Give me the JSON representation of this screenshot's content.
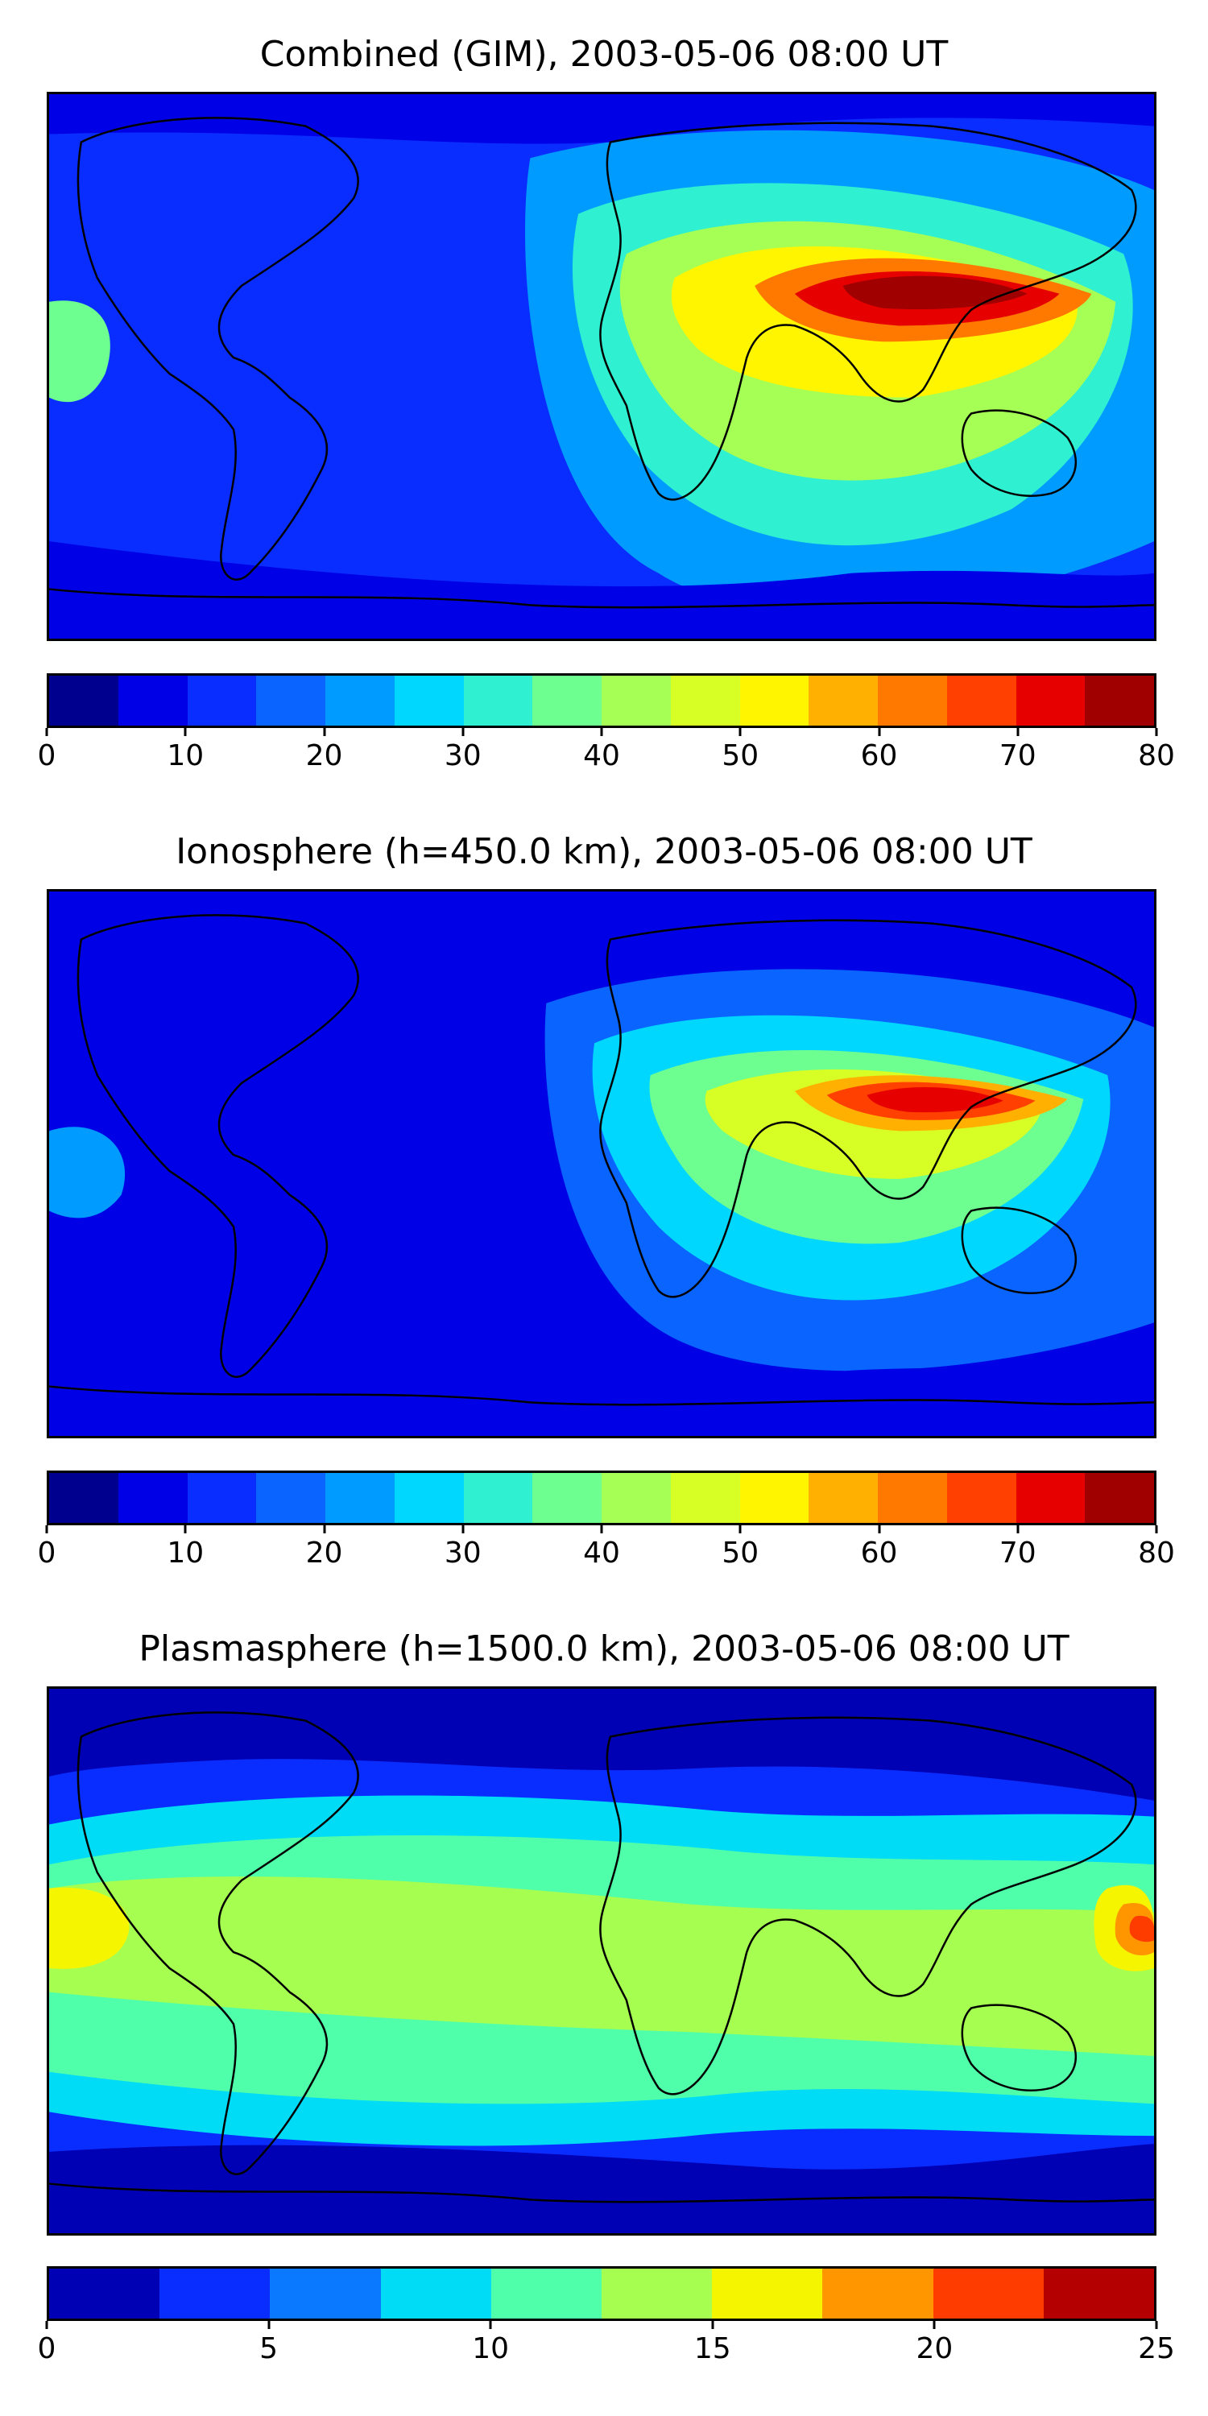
{
  "chart_data": [
    {
      "type": "heatmap",
      "title": "Combined (GIM), 2003-05-06 08:00 UT",
      "colorbar": {
        "levels": [
          0,
          5,
          10,
          15,
          20,
          25,
          30,
          35,
          40,
          45,
          50,
          55,
          60,
          65,
          70,
          75,
          80
        ],
        "tick_labels": [
          "0",
          "10",
          "20",
          "30",
          "40",
          "50",
          "60",
          "70",
          "80"
        ],
        "tick_values": [
          0,
          10,
          20,
          30,
          40,
          50,
          60,
          70,
          80
        ],
        "range": [
          0,
          80
        ],
        "colors": [
          "#00008f",
          "#0000e6",
          "#0a2dff",
          "#0a64ff",
          "#009bff",
          "#00d7ff",
          "#2ff0d0",
          "#6dff90",
          "#a6ff55",
          "#d7ff25",
          "#fff500",
          "#ffb000",
          "#ff7800",
          "#ff4000",
          "#e60000",
          "#a00000"
        ]
      },
      "background_level": 10,
      "regions": [
        {
          "name": "enhancement-outer",
          "level": 20
        },
        {
          "name": "enhancement-mid",
          "level": 30
        },
        {
          "name": "enhancement-inner",
          "level": 40
        },
        {
          "name": "crest-band",
          "level": 50
        },
        {
          "name": "crest-north-1",
          "level": 60
        },
        {
          "name": "crest-north-2",
          "level": 70
        },
        {
          "name": "crest-north-core",
          "level": 75
        },
        {
          "name": "pacific-west-edge",
          "level": 35
        },
        {
          "name": "polar-north",
          "level": 5
        },
        {
          "name": "polar-south",
          "level": 5
        }
      ]
    },
    {
      "type": "heatmap",
      "title": "Ionosphere  (h=450.0 km), 2003-05-06 08:00 UT",
      "colorbar": {
        "levels": [
          0,
          5,
          10,
          15,
          20,
          25,
          30,
          35,
          40,
          45,
          50,
          55,
          60,
          65,
          70,
          75,
          80
        ],
        "tick_labels": [
          "0",
          "10",
          "20",
          "30",
          "40",
          "50",
          "60",
          "70",
          "80"
        ],
        "tick_values": [
          0,
          10,
          20,
          30,
          40,
          50,
          60,
          70,
          80
        ],
        "range": [
          0,
          80
        ],
        "colors": [
          "#00008f",
          "#0000e6",
          "#0a2dff",
          "#0a64ff",
          "#009bff",
          "#00d7ff",
          "#2ff0d0",
          "#6dff90",
          "#a6ff55",
          "#d7ff25",
          "#fff500",
          "#ffb000",
          "#ff7800",
          "#ff4000",
          "#e60000",
          "#a00000"
        ]
      },
      "background_level": 5,
      "regions": [
        {
          "name": "enhancement-outer",
          "level": 15
        },
        {
          "name": "enhancement-mid",
          "level": 25
        },
        {
          "name": "enhancement-inner",
          "level": 35
        },
        {
          "name": "crest-band",
          "level": 45
        },
        {
          "name": "crest-north-1",
          "level": 55
        },
        {
          "name": "crest-north-2",
          "level": 65
        },
        {
          "name": "crest-north-core",
          "level": 70
        },
        {
          "name": "pacific-west-edge",
          "level": 20
        },
        {
          "name": "polar-north",
          "level": 5
        },
        {
          "name": "polar-south",
          "level": 5
        }
      ]
    },
    {
      "type": "heatmap",
      "title": "Plasmasphere (h=1500.0 km), 2003-05-06 08:00 UT",
      "colorbar": {
        "levels": [
          0,
          2.5,
          5,
          7.5,
          10,
          12.5,
          15,
          17.5,
          20,
          22.5,
          25
        ],
        "tick_labels": [
          "0",
          "5",
          "10",
          "15",
          "20",
          "25"
        ],
        "tick_values": [
          0,
          5,
          10,
          15,
          20,
          25
        ],
        "range": [
          0,
          25
        ],
        "colors": [
          "#0000b4",
          "#0a2dff",
          "#0a78ff",
          "#00dcf5",
          "#50ffaa",
          "#a6ff50",
          "#f5f500",
          "#ff9600",
          "#ff3c00",
          "#b40000"
        ]
      },
      "background_level": 2.5,
      "regions": [
        {
          "name": "low-lat-band",
          "level": 7.5
        },
        {
          "name": "low-lat-band-inner",
          "level": 10
        },
        {
          "name": "equatorial-core",
          "level": 12.5
        },
        {
          "name": "pacific-west-hot",
          "level": 15
        },
        {
          "name": "pacific-east-hot-1",
          "level": 15
        },
        {
          "name": "pacific-east-hot-2",
          "level": 17.5
        },
        {
          "name": "pacific-east-hot-3",
          "level": 20
        },
        {
          "name": "polar-north",
          "level": 0
        },
        {
          "name": "polar-south",
          "level": 0
        }
      ]
    }
  ]
}
